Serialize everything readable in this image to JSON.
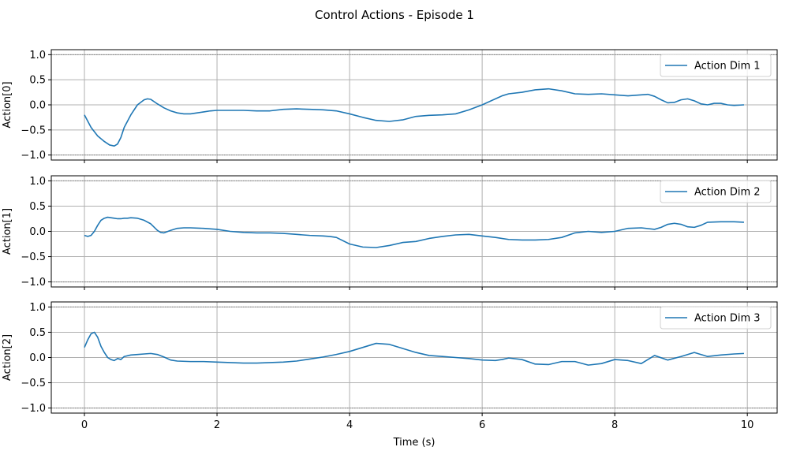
{
  "figure": {
    "title": "Control Actions - Episode 1"
  },
  "colors": {
    "series": "#1f77b4",
    "grid": "#b0b0b0",
    "reference_line": "#808080",
    "axes": "#000000",
    "background": "#ffffff"
  },
  "chart_data": [
    {
      "type": "line",
      "title": "",
      "xlabel": "",
      "ylabel": "Action[0]",
      "xlim": [
        -0.5,
        10.45
      ],
      "ylim": [
        -1.1,
        1.1
      ],
      "xticks": [
        0,
        2,
        4,
        6,
        8,
        10
      ],
      "xtick_labels": [],
      "yticks": [
        -1.0,
        -0.5,
        0.0,
        0.5,
        1.0
      ],
      "ytick_labels": [
        "−1.0",
        "−0.5",
        "0.0",
        "0.5",
        "1.0"
      ],
      "reference_lines": [
        1.0,
        -1.0
      ],
      "grid": true,
      "legend_position": "top-right",
      "series": [
        {
          "name": "Action Dim 1",
          "x": [
            0,
            0.1,
            0.2,
            0.3,
            0.38,
            0.45,
            0.5,
            0.55,
            0.6,
            0.7,
            0.8,
            0.9,
            0.95,
            1.0,
            1.1,
            1.2,
            1.3,
            1.4,
            1.5,
            1.6,
            1.7,
            1.8,
            1.9,
            2.0,
            2.2,
            2.4,
            2.6,
            2.8,
            3.0,
            3.2,
            3.4,
            3.6,
            3.8,
            4.0,
            4.2,
            4.4,
            4.6,
            4.8,
            5.0,
            5.2,
            5.4,
            5.6,
            5.8,
            6.0,
            6.2,
            6.3,
            6.4,
            6.6,
            6.8,
            7.0,
            7.2,
            7.4,
            7.6,
            7.8,
            8.0,
            8.2,
            8.4,
            8.5,
            8.6,
            8.7,
            8.8,
            8.9,
            9.0,
            9.1,
            9.2,
            9.3,
            9.4,
            9.5,
            9.6,
            9.7,
            9.8,
            9.95
          ],
          "y": [
            -0.2,
            -0.45,
            -0.62,
            -0.73,
            -0.8,
            -0.82,
            -0.78,
            -0.65,
            -0.45,
            -0.2,
            0.0,
            0.1,
            0.12,
            0.11,
            0.02,
            -0.06,
            -0.12,
            -0.16,
            -0.18,
            -0.18,
            -0.16,
            -0.14,
            -0.12,
            -0.11,
            -0.11,
            -0.11,
            -0.12,
            -0.12,
            -0.09,
            -0.08,
            -0.09,
            -0.1,
            -0.12,
            -0.18,
            -0.25,
            -0.31,
            -0.33,
            -0.3,
            -0.23,
            -0.21,
            -0.2,
            -0.18,
            -0.1,
            0.0,
            0.12,
            0.18,
            0.22,
            0.25,
            0.3,
            0.32,
            0.28,
            0.22,
            0.21,
            0.22,
            0.2,
            0.18,
            0.2,
            0.21,
            0.17,
            0.1,
            0.04,
            0.05,
            0.1,
            0.12,
            0.08,
            0.02,
            0.0,
            0.03,
            0.03,
            0.0,
            -0.01,
            0.0
          ]
        }
      ]
    },
    {
      "type": "line",
      "title": "",
      "xlabel": "",
      "ylabel": "Action[1]",
      "xlim": [
        -0.5,
        10.45
      ],
      "ylim": [
        -1.1,
        1.1
      ],
      "xticks": [
        0,
        2,
        4,
        6,
        8,
        10
      ],
      "xtick_labels": [],
      "yticks": [
        -1.0,
        -0.5,
        0.0,
        0.5,
        1.0
      ],
      "ytick_labels": [
        "−1.0",
        "−0.5",
        "0.0",
        "0.5",
        "1.0"
      ],
      "reference_lines": [
        1.0,
        -1.0
      ],
      "grid": true,
      "legend_position": "top-right",
      "series": [
        {
          "name": "Action Dim 2",
          "x": [
            0,
            0.05,
            0.1,
            0.15,
            0.2,
            0.25,
            0.3,
            0.35,
            0.4,
            0.45,
            0.5,
            0.55,
            0.6,
            0.65,
            0.7,
            0.8,
            0.9,
            1.0,
            1.1,
            1.15,
            1.2,
            1.3,
            1.4,
            1.5,
            1.6,
            1.8,
            2.0,
            2.2,
            2.4,
            2.6,
            2.8,
            3.0,
            3.2,
            3.4,
            3.6,
            3.7,
            3.8,
            4.0,
            4.2,
            4.4,
            4.6,
            4.8,
            5.0,
            5.2,
            5.4,
            5.6,
            5.8,
            6.0,
            6.2,
            6.4,
            6.6,
            6.8,
            7.0,
            7.2,
            7.4,
            7.6,
            7.8,
            8.0,
            8.2,
            8.4,
            8.6,
            8.7,
            8.8,
            8.9,
            9.0,
            9.1,
            9.2,
            9.3,
            9.4,
            9.6,
            9.8,
            9.95
          ],
          "y": [
            -0.08,
            -0.1,
            -0.08,
            0.0,
            0.12,
            0.22,
            0.26,
            0.28,
            0.27,
            0.26,
            0.25,
            0.25,
            0.26,
            0.26,
            0.27,
            0.26,
            0.22,
            0.15,
            0.02,
            -0.02,
            -0.03,
            0.02,
            0.06,
            0.07,
            0.07,
            0.06,
            0.04,
            0.0,
            -0.02,
            -0.03,
            -0.03,
            -0.04,
            -0.06,
            -0.08,
            -0.09,
            -0.1,
            -0.12,
            -0.25,
            -0.31,
            -0.32,
            -0.28,
            -0.22,
            -0.2,
            -0.14,
            -0.1,
            -0.07,
            -0.06,
            -0.09,
            -0.12,
            -0.16,
            -0.17,
            -0.17,
            -0.16,
            -0.12,
            -0.03,
            0.0,
            -0.02,
            0.0,
            0.06,
            0.07,
            0.04,
            0.08,
            0.14,
            0.16,
            0.14,
            0.09,
            0.08,
            0.12,
            0.18,
            0.19,
            0.19,
            0.18
          ]
        }
      ]
    },
    {
      "type": "line",
      "title": "",
      "xlabel": "Time (s)",
      "ylabel": "Action[2]",
      "xlim": [
        -0.5,
        10.45
      ],
      "ylim": [
        -1.1,
        1.1
      ],
      "xticks": [
        0,
        2,
        4,
        6,
        8,
        10
      ],
      "xtick_labels": [
        "0",
        "2",
        "4",
        "6",
        "8",
        "10"
      ],
      "yticks": [
        -1.0,
        -0.5,
        0.0,
        0.5,
        1.0
      ],
      "ytick_labels": [
        "−1.0",
        "−0.5",
        "0.0",
        "0.5",
        "1.0"
      ],
      "reference_lines": [
        1.0,
        -1.0
      ],
      "grid": true,
      "legend_position": "top-right",
      "series": [
        {
          "name": "Action Dim 3",
          "x": [
            0,
            0.05,
            0.1,
            0.15,
            0.2,
            0.25,
            0.3,
            0.35,
            0.4,
            0.45,
            0.5,
            0.55,
            0.6,
            0.7,
            0.8,
            0.9,
            1.0,
            1.1,
            1.2,
            1.3,
            1.4,
            1.6,
            1.8,
            2.0,
            2.2,
            2.4,
            2.6,
            2.8,
            3.0,
            3.2,
            3.4,
            3.6,
            3.8,
            4.0,
            4.2,
            4.4,
            4.6,
            4.8,
            5.0,
            5.2,
            5.4,
            5.6,
            5.8,
            6.0,
            6.2,
            6.3,
            6.4,
            6.6,
            6.8,
            7.0,
            7.2,
            7.4,
            7.6,
            7.8,
            8.0,
            8.2,
            8.4,
            8.6,
            8.8,
            9.0,
            9.2,
            9.4,
            9.6,
            9.8,
            9.95
          ],
          "y": [
            0.2,
            0.35,
            0.47,
            0.5,
            0.4,
            0.22,
            0.1,
            0.0,
            -0.04,
            -0.06,
            -0.02,
            -0.04,
            0.02,
            0.05,
            0.06,
            0.07,
            0.08,
            0.06,
            0.01,
            -0.05,
            -0.07,
            -0.08,
            -0.08,
            -0.09,
            -0.1,
            -0.11,
            -0.11,
            -0.1,
            -0.09,
            -0.07,
            -0.03,
            0.01,
            0.06,
            0.12,
            0.2,
            0.28,
            0.26,
            0.18,
            0.1,
            0.04,
            0.02,
            0.0,
            -0.02,
            -0.05,
            -0.06,
            -0.04,
            -0.01,
            -0.04,
            -0.13,
            -0.14,
            -0.08,
            -0.08,
            -0.15,
            -0.12,
            -0.04,
            -0.06,
            -0.12,
            0.04,
            -0.05,
            0.02,
            0.1,
            0.02,
            0.05,
            0.07,
            0.08
          ]
        }
      ]
    }
  ]
}
